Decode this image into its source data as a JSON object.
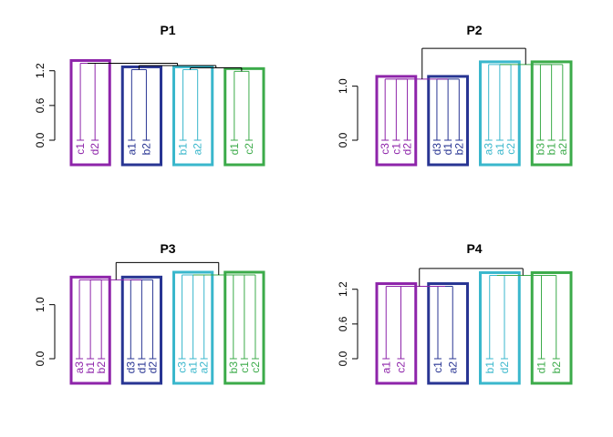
{
  "palette": {
    "purple": "#8e24aa",
    "blue": "#283593",
    "cyan": "#3ab7cc",
    "green": "#3cab4a",
    "trunk": "#000000",
    "axis": "#000000"
  },
  "chart_data": [
    {
      "type": "dendrogram",
      "title": "P1",
      "ylim": [
        0,
        1.4
      ],
      "yticks": [
        "0.0",
        "0.6",
        "1.2"
      ],
      "ytick_values": [
        0,
        0.6,
        1.2
      ],
      "clusters": [
        {
          "color": "purple",
          "leaves": [
            "c1",
            "d2"
          ],
          "merge_height": 1.33
        },
        {
          "color": "blue",
          "leaves": [
            "a1",
            "b2"
          ],
          "merge_height": 1.22
        },
        {
          "color": "cyan",
          "leaves": [
            "b1",
            "a2"
          ],
          "merge_height": 1.22
        },
        {
          "color": "green",
          "leaves": [
            "d1",
            "c2"
          ],
          "merge_height": 1.19
        }
      ],
      "merges": [
        [
          2,
          3,
          1.25
        ],
        [
          1,
          4,
          1.29
        ],
        [
          0,
          5,
          1.33
        ]
      ]
    },
    {
      "type": "dendrogram",
      "title": "P2",
      "ylim": [
        0,
        1.55
      ],
      "yticks": [
        "0.0",
        "1.0"
      ],
      "ytick_values": [
        0,
        1.0
      ],
      "clusters": [
        {
          "color": "purple",
          "leaves": [
            "c3",
            "c1",
            "d2"
          ],
          "merge_height": 1.13
        },
        {
          "color": "blue",
          "leaves": [
            "d3",
            "d1",
            "b2"
          ],
          "merge_height": 1.13
        },
        {
          "color": "cyan",
          "leaves": [
            "a3",
            "a1",
            "c2"
          ],
          "merge_height": 1.4
        },
        {
          "color": "green",
          "leaves": [
            "b3",
            "b1",
            "a2"
          ],
          "merge_height": 1.4
        }
      ],
      "merges": [
        [
          0,
          1,
          1.13
        ],
        [
          2,
          3,
          1.4
        ],
        [
          4,
          5,
          1.7
        ]
      ]
    },
    {
      "type": "dendrogram",
      "title": "P3",
      "ylim": [
        0,
        1.55
      ],
      "yticks": [
        "0.0",
        "1.0"
      ],
      "ytick_values": [
        0,
        1.0
      ],
      "clusters": [
        {
          "color": "purple",
          "leaves": [
            "a3",
            "b1",
            "b2"
          ],
          "merge_height": 1.46
        },
        {
          "color": "blue",
          "leaves": [
            "d3",
            "d1",
            "d2"
          ],
          "merge_height": 1.46
        },
        {
          "color": "cyan",
          "leaves": [
            "c3",
            "a1",
            "a2"
          ],
          "merge_height": 1.55
        },
        {
          "color": "green",
          "leaves": [
            "b3",
            "c1",
            "c2"
          ],
          "merge_height": 1.55
        }
      ],
      "merges": [
        [
          0,
          1,
          1.46
        ],
        [
          2,
          3,
          1.55
        ],
        [
          4,
          5,
          1.78
        ]
      ]
    },
    {
      "type": "dendrogram",
      "title": "P4",
      "ylim": [
        0,
        1.4
      ],
      "yticks": [
        "0.0",
        "0.6",
        "1.2"
      ],
      "ytick_values": [
        0,
        0.6,
        1.2
      ],
      "clusters": [
        {
          "color": "purple",
          "leaves": [
            "a1",
            "c2"
          ],
          "merge_height": 1.25
        },
        {
          "color": "blue",
          "leaves": [
            "c1",
            "a2"
          ],
          "merge_height": 1.25
        },
        {
          "color": "cyan",
          "leaves": [
            "b1",
            "d2"
          ],
          "merge_height": 1.44
        },
        {
          "color": "green",
          "leaves": [
            "d1",
            "b2"
          ],
          "merge_height": 1.44
        }
      ],
      "merges": [
        [
          0,
          1,
          1.25
        ],
        [
          2,
          3,
          1.44
        ],
        [
          4,
          5,
          1.56
        ]
      ]
    }
  ]
}
